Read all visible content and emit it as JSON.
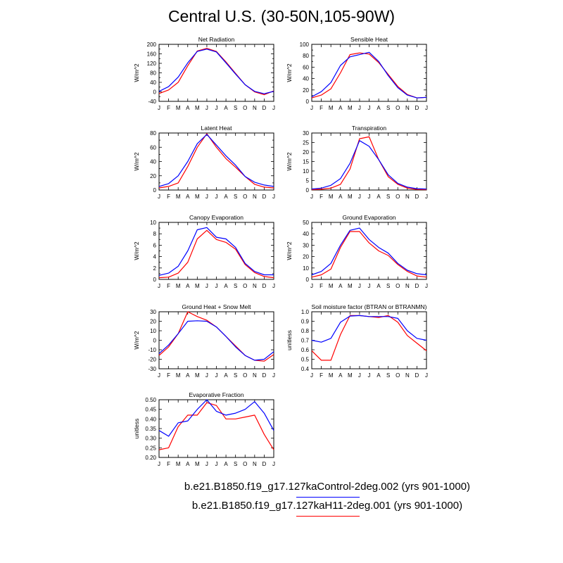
{
  "figure": {
    "title": "Central U.S. (30-50N,105-90W)"
  },
  "legend": [
    {
      "label": "b.e21.B1850.f19_g17.127kaControl-2deg.002 (yrs 901-1000)",
      "color": "#0000ff"
    },
    {
      "label": "b.e21.B1850.f19_g17.127kaH11-2deg.001 (yrs 901-1000)",
      "color": "#ff0000"
    }
  ],
  "colors": {
    "control": "#0000ff",
    "h11": "#ff0000"
  },
  "chart_data": [
    {
      "type": "line",
      "title": "Net Radiation",
      "ylabel": "W/m^2",
      "x": [
        "J",
        "F",
        "M",
        "A",
        "M",
        "J",
        "J",
        "A",
        "S",
        "O",
        "N",
        "D",
        "J"
      ],
      "ylim": [
        -40,
        200
      ],
      "yticks": [
        "-40",
        "-20",
        "0",
        "20",
        "40",
        "60",
        "80",
        "100",
        "120",
        "140",
        "160",
        "180",
        "200"
      ],
      "ytick_labels": [
        "-40",
        "0",
        "40",
        "80",
        "120",
        "160",
        "200"
      ],
      "series": [
        {
          "name": "b.e21.B1850.f19_g17.127kaControl-2deg.002 (yrs 901-1000)",
          "color": "#0000ff",
          "values": [
            2,
            22,
            62,
            122,
            170,
            180,
            168,
            122,
            75,
            30,
            2,
            -8,
            2
          ]
        },
        {
          "name": "b.e21.B1850.f19_g17.127kaH11-2deg.001 (yrs 901-1000)",
          "color": "#ff0000",
          "values": [
            -7,
            8,
            40,
            110,
            172,
            183,
            170,
            126,
            78,
            30,
            0,
            -12,
            4
          ]
        }
      ]
    },
    {
      "type": "line",
      "title": "Sensible Heat",
      "ylabel": "W/m^2",
      "x": [
        "J",
        "F",
        "M",
        "A",
        "M",
        "J",
        "J",
        "A",
        "S",
        "O",
        "N",
        "D",
        "J"
      ],
      "ylim": [
        0,
        100
      ],
      "yticks": [
        "0",
        "10",
        "20",
        "30",
        "40",
        "50",
        "60",
        "70",
        "80",
        "90",
        "100"
      ],
      "ytick_labels": [
        "0",
        "20",
        "40",
        "60",
        "80",
        "100"
      ],
      "series": [
        {
          "name": "b.e21.B1850.f19_g17.127kaControl-2deg.002 (yrs 901-1000)",
          "color": "#0000ff",
          "values": [
            8,
            17,
            33,
            63,
            78,
            82,
            86,
            70,
            45,
            24,
            11,
            6,
            7
          ]
        },
        {
          "name": "b.e21.B1850.f19_g17.127kaH11-2deg.001 (yrs 901-1000)",
          "color": "#ff0000",
          "values": [
            6,
            11,
            22,
            50,
            82,
            85,
            83,
            68,
            47,
            26,
            12,
            6,
            7
          ]
        }
      ]
    },
    {
      "type": "line",
      "title": "Latent Heat",
      "ylabel": "W/m^2",
      "x": [
        "J",
        "F",
        "M",
        "A",
        "M",
        "J",
        "J",
        "A",
        "S",
        "O",
        "N",
        "D",
        "J"
      ],
      "ylim": [
        0,
        80
      ],
      "yticks": [
        "0",
        "10",
        "20",
        "30",
        "40",
        "50",
        "60",
        "70",
        "80"
      ],
      "ytick_labels": [
        "0",
        "20",
        "40",
        "60",
        "80"
      ],
      "series": [
        {
          "name": "b.e21.B1850.f19_g17.127kaControl-2deg.002 (yrs 901-1000)",
          "color": "#0000ff",
          "values": [
            5,
            9,
            20,
            40,
            65,
            78,
            63,
            48,
            35,
            19,
            11,
            7,
            5
          ]
        },
        {
          "name": "b.e21.B1850.f19_g17.127kaH11-2deg.001 (yrs 901-1000)",
          "color": "#ff0000",
          "values": [
            3,
            5,
            10,
            33,
            60,
            79,
            60,
            44,
            32,
            19,
            8,
            4,
            3
          ]
        }
      ]
    },
    {
      "type": "line",
      "title": "Transpiration",
      "ylabel": "W/m^2",
      "x": [
        "J",
        "F",
        "M",
        "A",
        "M",
        "J",
        "J",
        "A",
        "S",
        "O",
        "N",
        "D",
        "J"
      ],
      "ylim": [
        0,
        30
      ],
      "yticks": [
        "0",
        "5",
        "10",
        "15",
        "20",
        "25",
        "30"
      ],
      "ytick_labels": [
        "0",
        "5",
        "10",
        "15",
        "20",
        "25",
        "30"
      ],
      "series": [
        {
          "name": "b.e21.B1850.f19_g17.127kaControl-2deg.002 (yrs 901-1000)",
          "color": "#0000ff",
          "values": [
            0.5,
            1,
            2.5,
            6,
            14,
            26,
            23,
            16,
            8,
            3.5,
            1.5,
            0.7,
            0.5
          ]
        },
        {
          "name": "b.e21.B1850.f19_g17.127kaH11-2deg.001 (yrs 901-1000)",
          "color": "#ff0000",
          "values": [
            0.2,
            0.4,
            1,
            3,
            11,
            27,
            28,
            16,
            7,
            3,
            1,
            0.3,
            0.2
          ]
        }
      ]
    },
    {
      "type": "line",
      "title": "Canopy Evaporation",
      "ylabel": "W/m^2",
      "x": [
        "J",
        "F",
        "M",
        "A",
        "M",
        "J",
        "J",
        "A",
        "S",
        "O",
        "N",
        "D",
        "J"
      ],
      "ylim": [
        0,
        10
      ],
      "yticks": [
        "0",
        "1",
        "2",
        "3",
        "4",
        "5",
        "6",
        "7",
        "8",
        "9",
        "10"
      ],
      "ytick_labels": [
        "0",
        "2",
        "4",
        "6",
        "8",
        "10"
      ],
      "series": [
        {
          "name": "b.e21.B1850.f19_g17.127kaControl-2deg.002 (yrs 901-1000)",
          "color": "#0000ff",
          "values": [
            0.7,
            1.1,
            2.3,
            5,
            8.7,
            9.1,
            7.4,
            7.1,
            5.6,
            2.8,
            1.4,
            0.8,
            0.8
          ]
        },
        {
          "name": "b.e21.B1850.f19_g17.127kaH11-2deg.001 (yrs 901-1000)",
          "color": "#ff0000",
          "values": [
            0.3,
            0.4,
            1.1,
            3,
            7.1,
            8.6,
            7,
            6.5,
            5.3,
            2.6,
            1.2,
            0.5,
            0.3
          ]
        }
      ]
    },
    {
      "type": "line",
      "title": "Ground Evaporation",
      "ylabel": "W/m^2",
      "x": [
        "J",
        "F",
        "M",
        "A",
        "M",
        "J",
        "J",
        "A",
        "S",
        "O",
        "N",
        "D",
        "J"
      ],
      "ylim": [
        0,
        50
      ],
      "yticks": [
        "0",
        "5",
        "10",
        "15",
        "20",
        "25",
        "30",
        "35",
        "40",
        "45",
        "50"
      ],
      "ytick_labels": [
        "0",
        "10",
        "20",
        "30",
        "40",
        "50"
      ],
      "series": [
        {
          "name": "b.e21.B1850.f19_g17.127kaControl-2deg.002 (yrs 901-1000)",
          "color": "#0000ff",
          "values": [
            4,
            7,
            14,
            30,
            43,
            45,
            35,
            28,
            23,
            14,
            8,
            5,
            4
          ]
        },
        {
          "name": "b.e21.B1850.f19_g17.127kaH11-2deg.001 (yrs 901-1000)",
          "color": "#ff0000",
          "values": [
            2,
            4,
            9,
            28,
            42,
            42,
            32,
            25,
            21,
            13,
            7,
            3,
            2
          ]
        }
      ]
    },
    {
      "type": "line",
      "title": "Ground Heat + Snow Melt",
      "ylabel": "W/m^2",
      "x": [
        "J",
        "F",
        "M",
        "A",
        "M",
        "J",
        "J",
        "A",
        "S",
        "O",
        "N",
        "D",
        "J"
      ],
      "ylim": [
        -30,
        30
      ],
      "yticks": [
        "-30",
        "-20",
        "-10",
        "0",
        "10",
        "20",
        "30"
      ],
      "ytick_labels": [
        "-30",
        "-20",
        "-10",
        "0",
        "10",
        "20",
        "30"
      ],
      "series": [
        {
          "name": "b.e21.B1850.f19_g17.127kaControl-2deg.002 (yrs 901-1000)",
          "color": "#0000ff",
          "values": [
            -14,
            -5,
            7,
            20,
            20.5,
            20,
            14,
            4,
            -7,
            -16,
            -21,
            -20,
            -12
          ]
        },
        {
          "name": "b.e21.B1850.f19_g17.127kaH11-2deg.001 (yrs 901-1000)",
          "color": "#ff0000",
          "values": [
            -16,
            -7,
            7,
            30,
            25,
            21,
            14,
            4,
            -6,
            -16,
            -21,
            -22,
            -15
          ]
        }
      ]
    },
    {
      "type": "line",
      "title": "Soil moisture factor (BTRAN or BTRANMN)",
      "ylabel": "unitless",
      "x": [
        "J",
        "F",
        "M",
        "A",
        "M",
        "J",
        "J",
        "A",
        "S",
        "O",
        "N",
        "D",
        "J"
      ],
      "ylim": [
        0.4,
        1.0
      ],
      "yticks": [
        "0.4",
        "0.5",
        "0.6",
        "0.7",
        "0.8",
        "0.9",
        "1.0"
      ],
      "ytick_labels": [
        "0.4",
        "0.5",
        "0.6",
        "0.7",
        "0.8",
        "0.9",
        "1.0"
      ],
      "series": [
        {
          "name": "b.e21.B1850.f19_g17.127kaControl-2deg.002 (yrs 901-1000)",
          "color": "#0000ff",
          "values": [
            0.7,
            0.68,
            0.72,
            0.89,
            0.955,
            0.96,
            0.95,
            0.95,
            0.95,
            0.93,
            0.8,
            0.72,
            0.7
          ]
        },
        {
          "name": "b.e21.B1850.f19_g17.127kaH11-2deg.001 (yrs 901-1000)",
          "color": "#ff0000",
          "values": [
            0.59,
            0.49,
            0.49,
            0.76,
            0.96,
            0.96,
            0.95,
            0.94,
            0.96,
            0.89,
            0.75,
            0.67,
            0.59
          ]
        }
      ]
    },
    {
      "type": "line",
      "title": "Evaporative Fraction",
      "ylabel": "unitless",
      "x": [
        "J",
        "F",
        "M",
        "A",
        "M",
        "J",
        "J",
        "A",
        "S",
        "O",
        "N",
        "D",
        "J"
      ],
      "ylim": [
        0.2,
        0.5
      ],
      "yticks": [
        "0.20",
        "0.25",
        "0.30",
        "0.35",
        "0.40",
        "0.45",
        "0.50"
      ],
      "ytick_labels": [
        "0.20",
        "0.25",
        "0.30",
        "0.35",
        "0.40",
        "0.45",
        "0.50"
      ],
      "series": [
        {
          "name": "b.e21.B1850.f19_g17.127kaControl-2deg.002 (yrs 901-1000)",
          "color": "#0000ff",
          "values": [
            0.34,
            0.31,
            0.38,
            0.39,
            0.45,
            0.5,
            0.44,
            0.42,
            0.43,
            0.45,
            0.49,
            0.43,
            0.34
          ]
        },
        {
          "name": "b.e21.B1850.f19_g17.127kaH11-2deg.001 (yrs 901-1000)",
          "color": "#ff0000",
          "values": [
            0.24,
            0.25,
            0.36,
            0.42,
            0.42,
            0.485,
            0.47,
            0.4,
            0.4,
            0.41,
            0.42,
            0.32,
            0.24
          ]
        }
      ]
    }
  ]
}
